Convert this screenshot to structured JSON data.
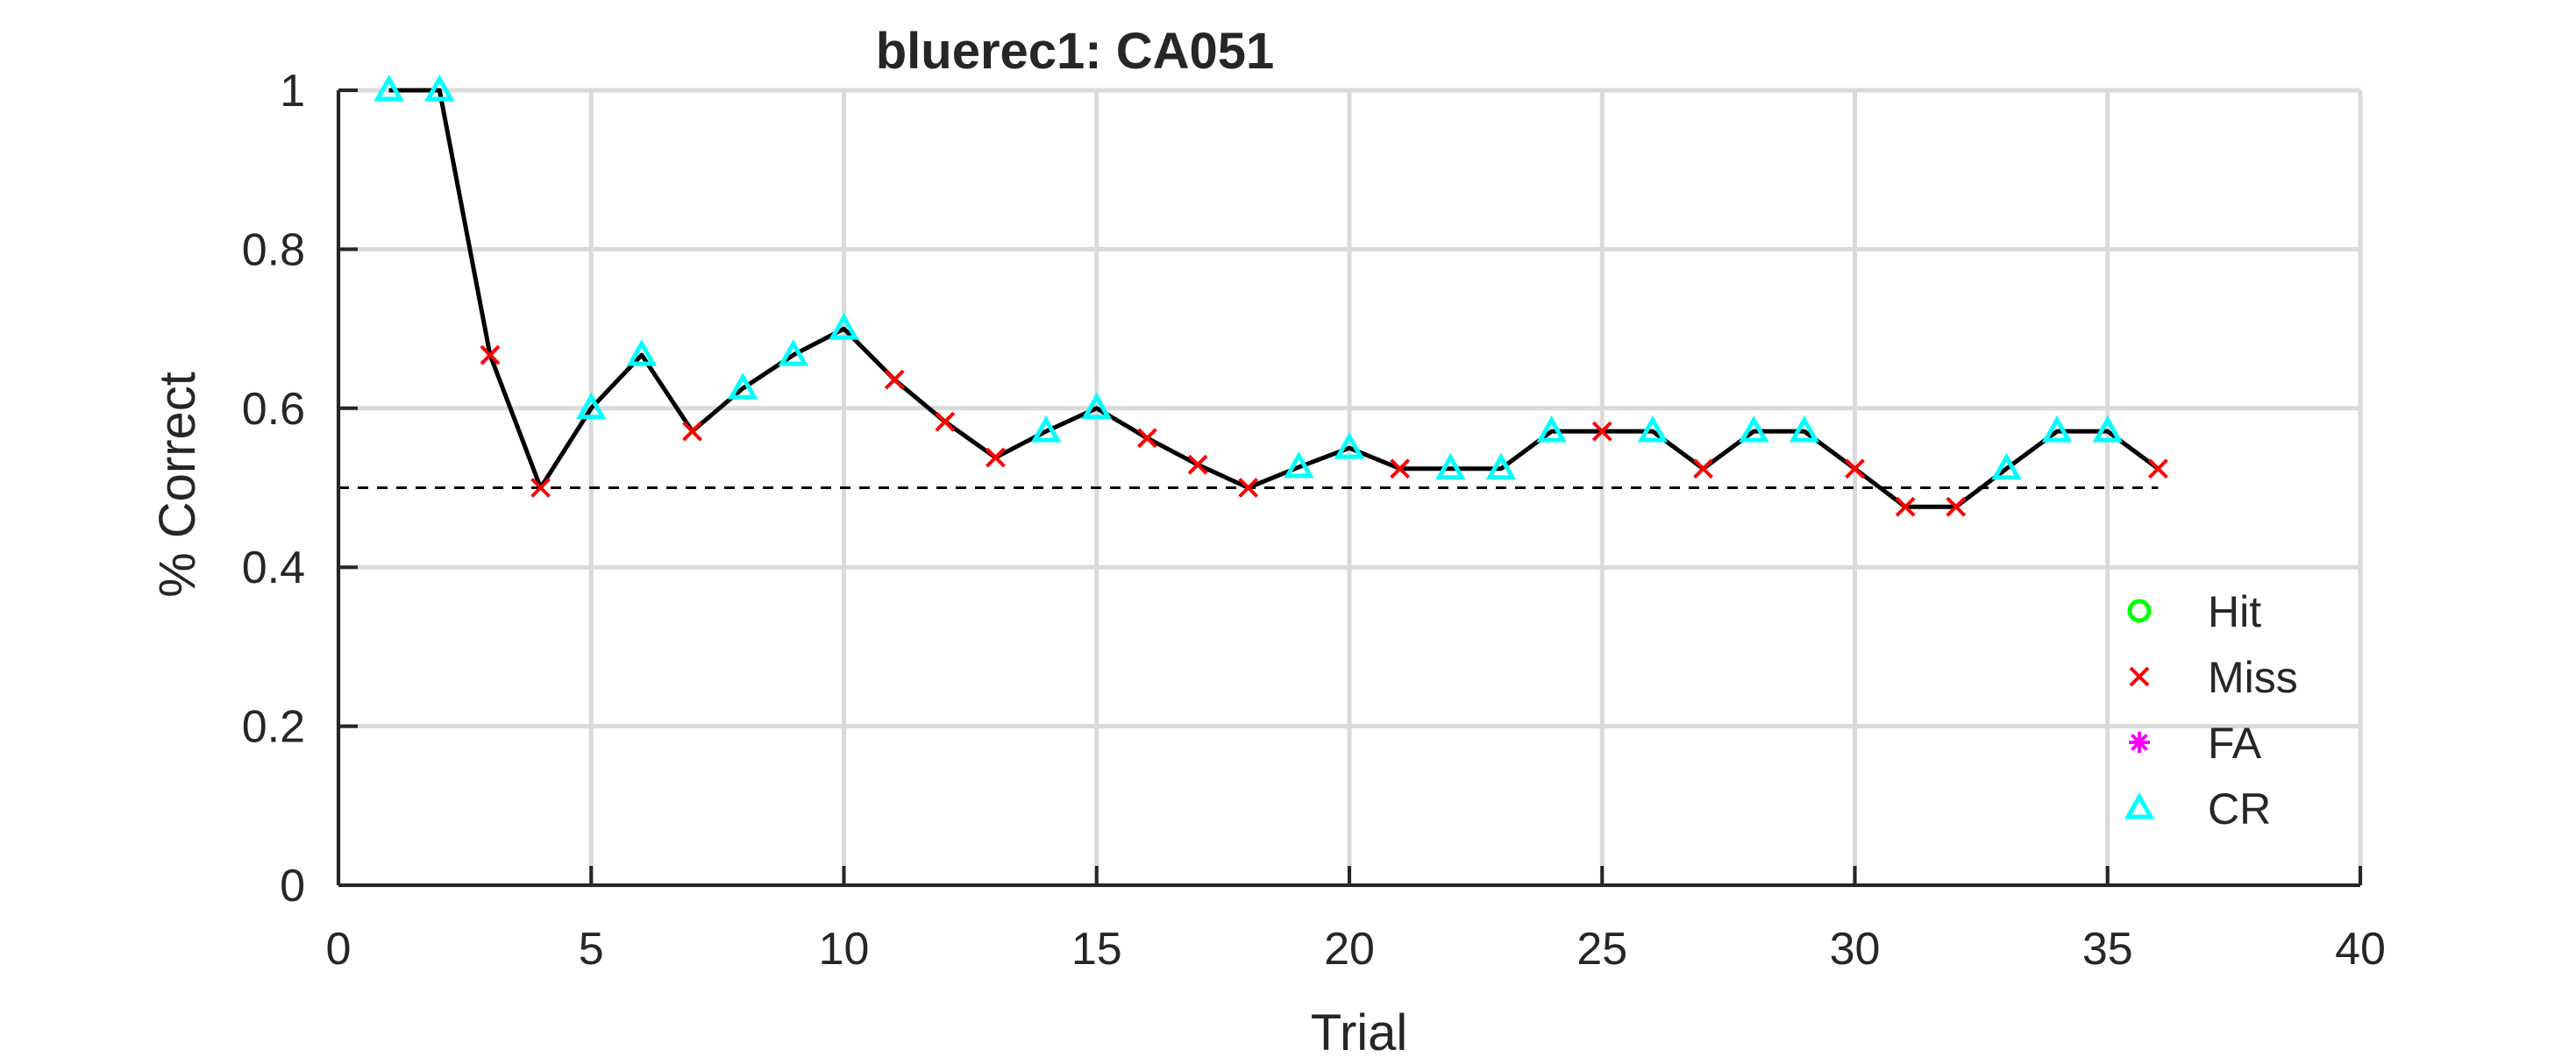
{
  "chart_data": {
    "type": "line",
    "title": "bluerec1: CA051",
    "xlabel": "Trial",
    "ylabel": "% Correct",
    "xlim": [
      0,
      40
    ],
    "ylim": [
      0,
      1
    ],
    "xticks": [
      0,
      5,
      10,
      15,
      20,
      25,
      30,
      35,
      40
    ],
    "yticks": [
      0,
      0.2,
      0.4,
      0.6,
      0.8,
      1
    ],
    "xtick_labels": [
      "0",
      "5",
      "10",
      "15",
      "20",
      "25",
      "30",
      "35",
      "40"
    ],
    "ytick_labels": [
      "0",
      "0.2",
      "0.4",
      "0.6",
      "0.8",
      "1"
    ],
    "grid": true,
    "chance_level": 0.5,
    "legend_position": "lower-right, inside axes",
    "legend": [
      {
        "label": "Hit",
        "marker": "circle",
        "color": "#00ff00"
      },
      {
        "label": "Miss",
        "marker": "x",
        "color": "#ff0000"
      },
      {
        "label": "FA",
        "marker": "asterisk",
        "color": "#ff00ff"
      },
      {
        "label": "CR",
        "marker": "triangle",
        "color": "#00ffff"
      }
    ],
    "line_color": "#000000",
    "x": [
      1,
      2,
      3,
      4,
      5,
      6,
      7,
      8,
      9,
      10,
      11,
      12,
      13,
      14,
      15,
      16,
      17,
      18,
      19,
      20,
      21,
      22,
      23,
      24,
      25,
      26,
      27,
      28,
      29,
      30,
      31,
      32,
      33,
      34,
      35,
      36
    ],
    "y": [
      1,
      1,
      0.667,
      0.5,
      0.6,
      0.667,
      0.571,
      0.625,
      0.667,
      0.7,
      0.636,
      0.583,
      0.538,
      0.571,
      0.6,
      0.5625,
      0.529,
      0.5,
      0.526,
      0.55,
      0.524,
      0.524,
      0.524,
      0.571,
      0.571,
      0.571,
      0.524,
      0.571,
      0.571,
      0.524,
      0.476,
      0.476,
      0.524,
      0.571,
      0.571,
      0.524
    ],
    "outcomes": [
      "CR",
      "CR",
      "Miss",
      "Miss",
      "CR",
      "CR",
      "Miss",
      "CR",
      "CR",
      "CR",
      "Miss",
      "Miss",
      "Miss",
      "CR",
      "CR",
      "Miss",
      "Miss",
      "Miss",
      "CR",
      "CR",
      "Miss",
      "CR",
      "CR",
      "CR",
      "Miss",
      "CR",
      "Miss",
      "CR",
      "CR",
      "Miss",
      "Miss",
      "Miss",
      "CR",
      "CR",
      "CR",
      "Miss"
    ]
  }
}
